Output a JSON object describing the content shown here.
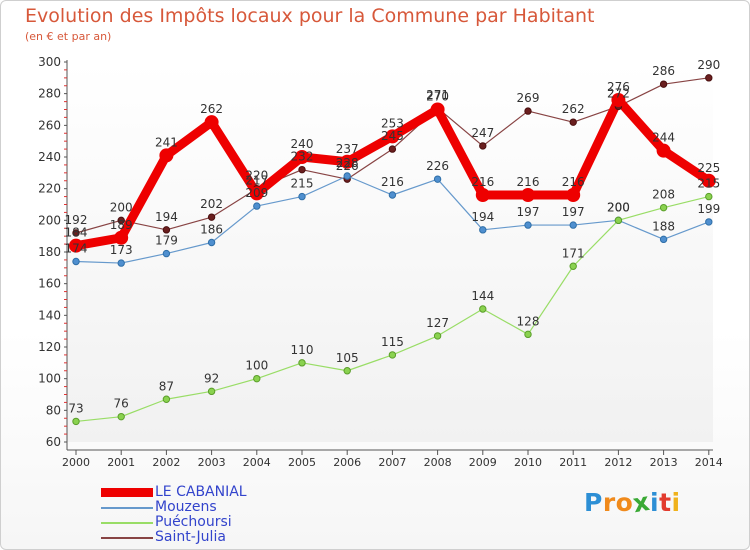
{
  "title": "Evolution des Impôts locaux pour la Commune par Habitant",
  "subtitle": "(en € et par an)",
  "brand": "Proxiti",
  "chart_data": {
    "type": "line",
    "title": "Evolution des Impôts locaux pour la Commune par Habitant",
    "ylabel": "(en € et par an)",
    "xlabel": "",
    "x": [
      "2000",
      "2001",
      "2002",
      "2003",
      "2004",
      "2005",
      "2006",
      "2007",
      "2008",
      "2009",
      "2010",
      "2011",
      "2012",
      "2013",
      "2014"
    ],
    "ylim": [
      60,
      300
    ],
    "yticks": [
      "60",
      "80",
      "100",
      "120",
      "140",
      "160",
      "180",
      "200",
      "220",
      "240",
      "260",
      "280",
      "300"
    ],
    "series": [
      {
        "name": "LE CABANIAL",
        "color": "#ee0000",
        "values": [
          184,
          189,
          241,
          262,
          217,
          240,
          237,
          253,
          270,
          216,
          216,
          216,
          276,
          244,
          225
        ],
        "labels": [
          "184",
          "189",
          "241",
          "262",
          "217",
          "240",
          "237",
          "253",
          "270",
          "216",
          "216",
          "216",
          "276",
          "244",
          "225"
        ]
      },
      {
        "name": "Mouzens",
        "color": "#6699cc",
        "values": [
          174,
          173,
          179,
          186,
          209,
          215,
          228,
          216,
          226,
          194,
          197,
          197,
          200,
          188,
          199
        ],
        "labels": [
          "174",
          "173",
          "179",
          "186",
          "209",
          "215",
          "228",
          "216",
          "226",
          "194",
          "197",
          "197",
          "200",
          "188",
          "199"
        ]
      },
      {
        "name": "Puéchoursi",
        "color": "#99dd66",
        "values": [
          73,
          76,
          87,
          92,
          100,
          110,
          105,
          115,
          127,
          144,
          128,
          171,
          200,
          208,
          215
        ],
        "labels": [
          "73",
          "76",
          "87",
          "92",
          "100",
          "110",
          "105",
          "115",
          "127",
          "144",
          "128",
          "171",
          "200",
          "208",
          "215"
        ]
      },
      {
        "name": "Saint-Julia",
        "color": "#884444",
        "values": [
          192,
          200,
          194,
          202,
          220,
          232,
          226,
          245,
          271,
          247,
          269,
          262,
          272,
          286,
          290
        ],
        "labels": [
          "192",
          "200",
          "194",
          "202",
          "220",
          "232",
          "226",
          "245",
          "271",
          "247",
          "269",
          "262",
          "272",
          "286",
          "290"
        ]
      }
    ],
    "legend_position": "bottom-left",
    "grid": false
  }
}
